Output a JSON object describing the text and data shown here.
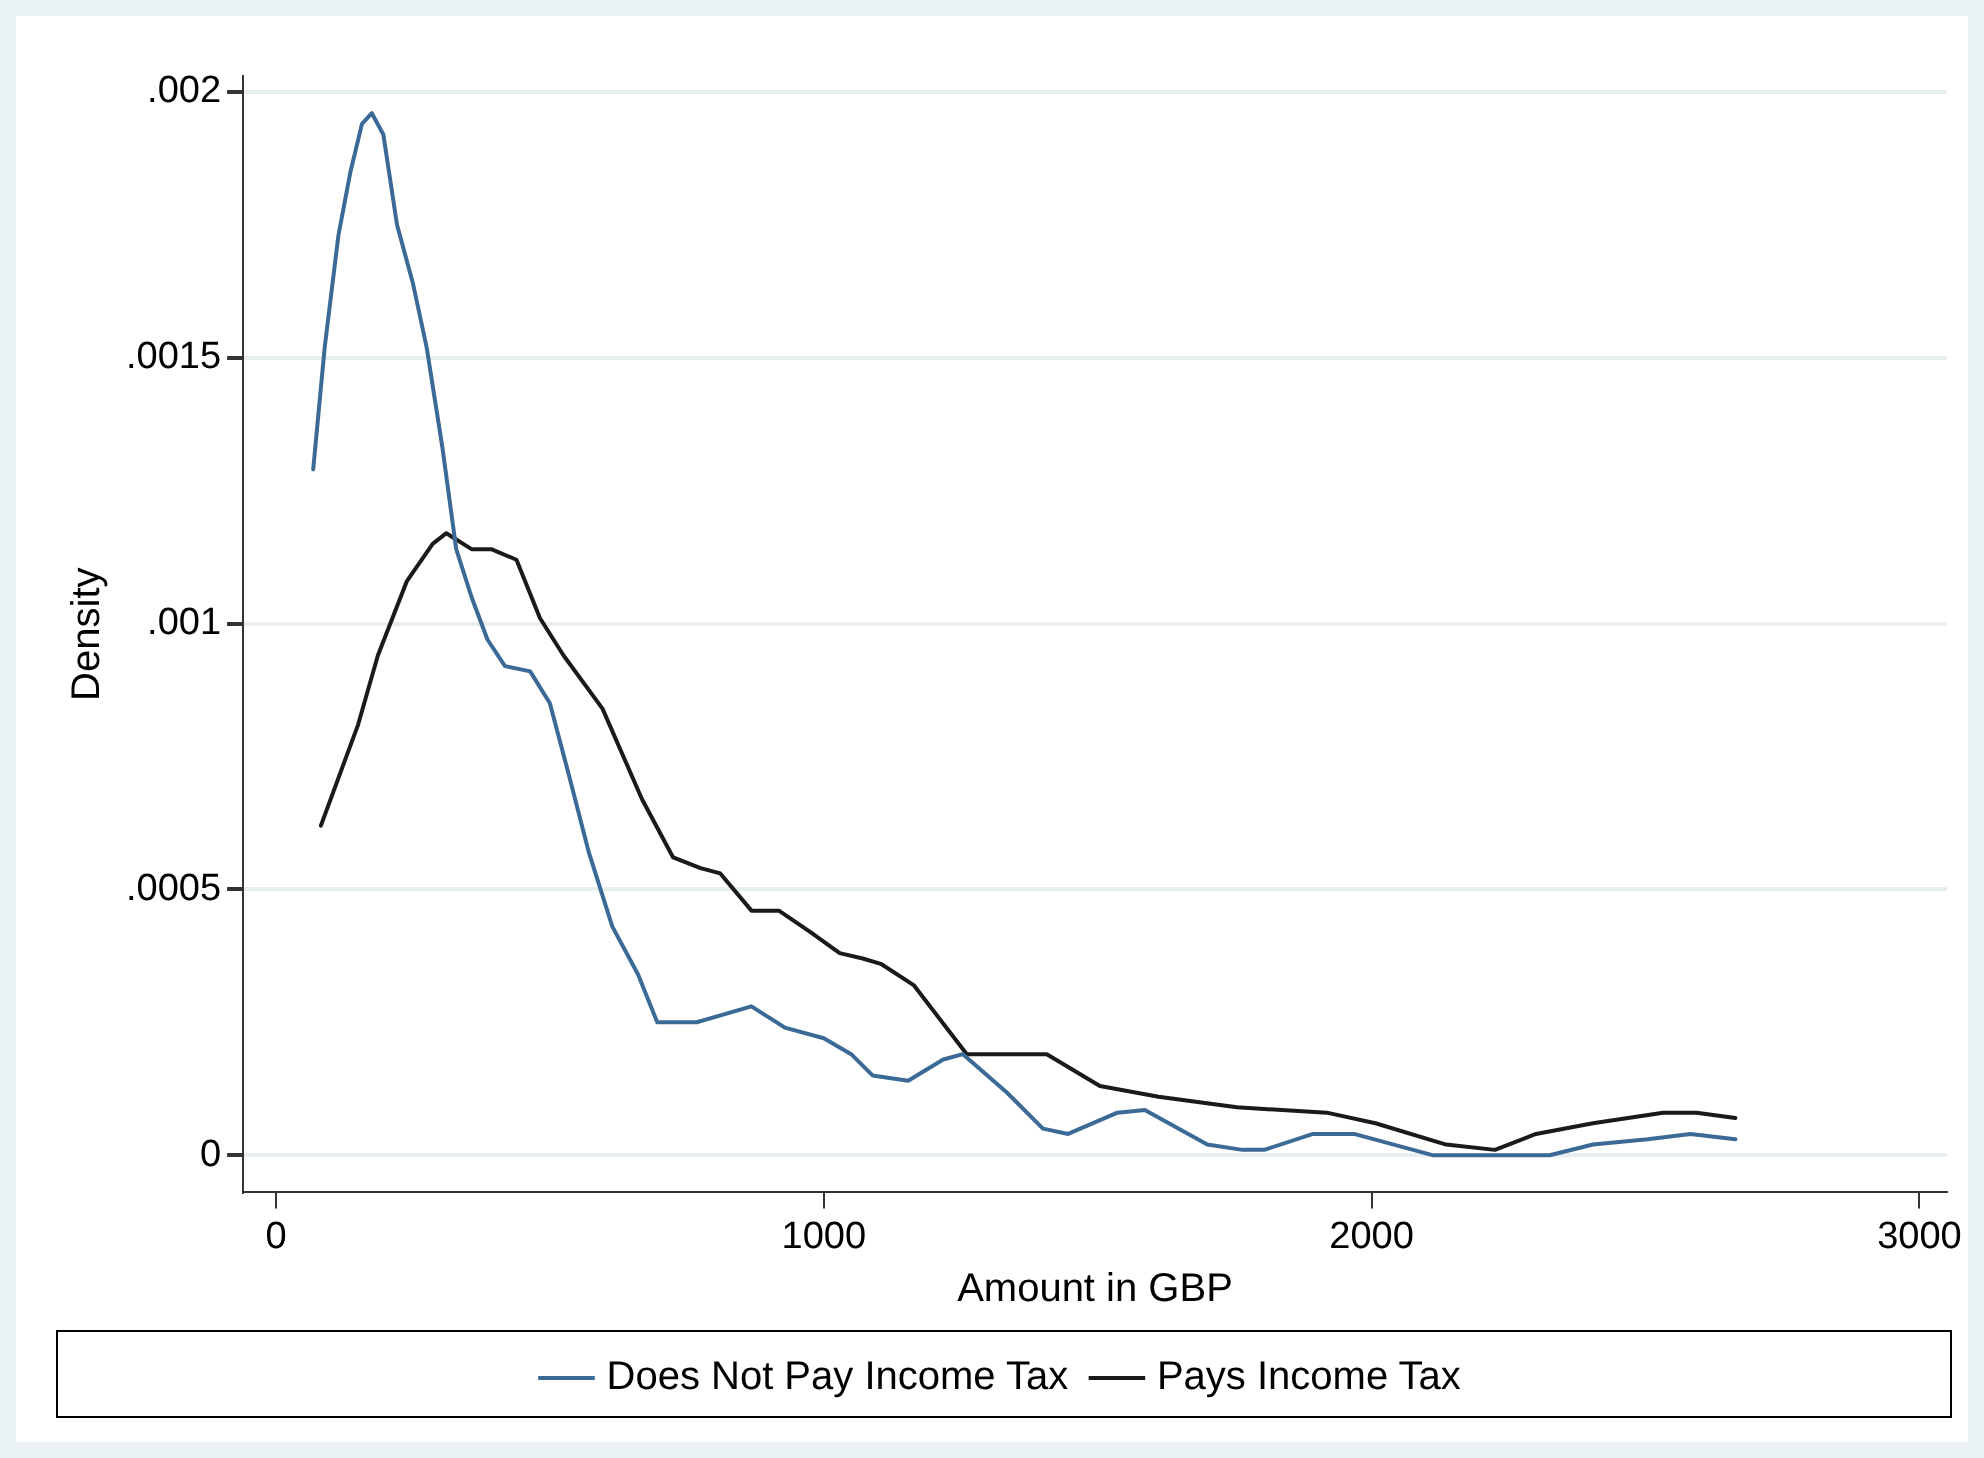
{
  "chart_data": {
    "type": "line",
    "xlabel": "Amount in GBP",
    "ylabel": "Density",
    "xlim": [
      -60,
      3050
    ],
    "xticks": [
      0,
      1000,
      2000,
      3000
    ],
    "ylim": [
      -7e-05,
      0.00203
    ],
    "yticks": [
      {
        "value": 0,
        "label": "0"
      },
      {
        "value": 0.0005,
        "label": ".0005"
      },
      {
        "value": 0.001,
        "label": ".001"
      },
      {
        "value": 0.0015,
        "label": ".0015"
      },
      {
        "value": 0.002,
        "label": ".002"
      }
    ],
    "grid": "y",
    "legend": "bottom",
    "marker": "none",
    "line_style": "solid",
    "series": [
      {
        "name": "Does Not Pay Income Tax",
        "color": "#3b6a97",
        "x": [
          68,
          89,
          114,
          136,
          157,
          175,
          196,
          221,
          250,
          275,
          304,
          329,
          357,
          386,
          418,
          464,
          500,
          536,
          571,
          614,
          661,
          696,
          768,
          868,
          929,
          1000,
          1050,
          1089,
          1154,
          1218,
          1254,
          1332,
          1400,
          1446,
          1536,
          1586,
          1700,
          1764,
          1804,
          1893,
          1968,
          2111,
          2325,
          2404,
          2504,
          2582,
          2664
        ],
        "values": [
          0.00129,
          0.00152,
          0.00173,
          0.00185,
          0.00194,
          0.00196,
          0.00192,
          0.00175,
          0.00164,
          0.00152,
          0.00133,
          0.00114,
          0.00105,
          0.00097,
          0.00092,
          0.00091,
          0.00085,
          0.00071,
          0.00057,
          0.00043,
          0.00034,
          0.00025,
          0.00025,
          0.00028,
          0.00024,
          0.00022,
          0.00019,
          0.00015,
          0.00014,
          0.00018,
          0.00019,
          0.00012,
          5e-05,
          4e-05,
          8e-05,
          8.5e-05,
          2e-05,
          1e-05,
          1e-05,
          4e-05,
          4e-05,
          0,
          0,
          2e-05,
          3e-05,
          4e-05,
          3e-05
        ]
      },
      {
        "name": "Pays Income Tax",
        "color": "#1a1a1a",
        "x": [
          82,
          150,
          186,
          239,
          286,
          311,
          357,
          393,
          439,
          482,
          525,
          596,
          668,
          725,
          775,
          811,
          868,
          918,
          975,
          1029,
          1071,
          1104,
          1164,
          1261,
          1371,
          1407,
          1504,
          1611,
          1754,
          1918,
          2007,
          2136,
          2225,
          2300,
          2404,
          2532,
          2593,
          2664
        ],
        "values": [
          0.00062,
          0.00081,
          0.00094,
          0.00108,
          0.00115,
          0.00117,
          0.00114,
          0.00114,
          0.00112,
          0.00101,
          0.00094,
          0.00084,
          0.00067,
          0.00056,
          0.00054,
          0.00053,
          0.00046,
          0.00046,
          0.00042,
          0.00038,
          0.00037,
          0.00036,
          0.00032,
          0.00019,
          0.00019,
          0.00019,
          0.00013,
          0.00011,
          9e-05,
          8e-05,
          6e-05,
          2e-05,
          1e-05,
          4e-05,
          6e-05,
          8e-05,
          8e-05,
          7e-05
        ]
      }
    ]
  }
}
